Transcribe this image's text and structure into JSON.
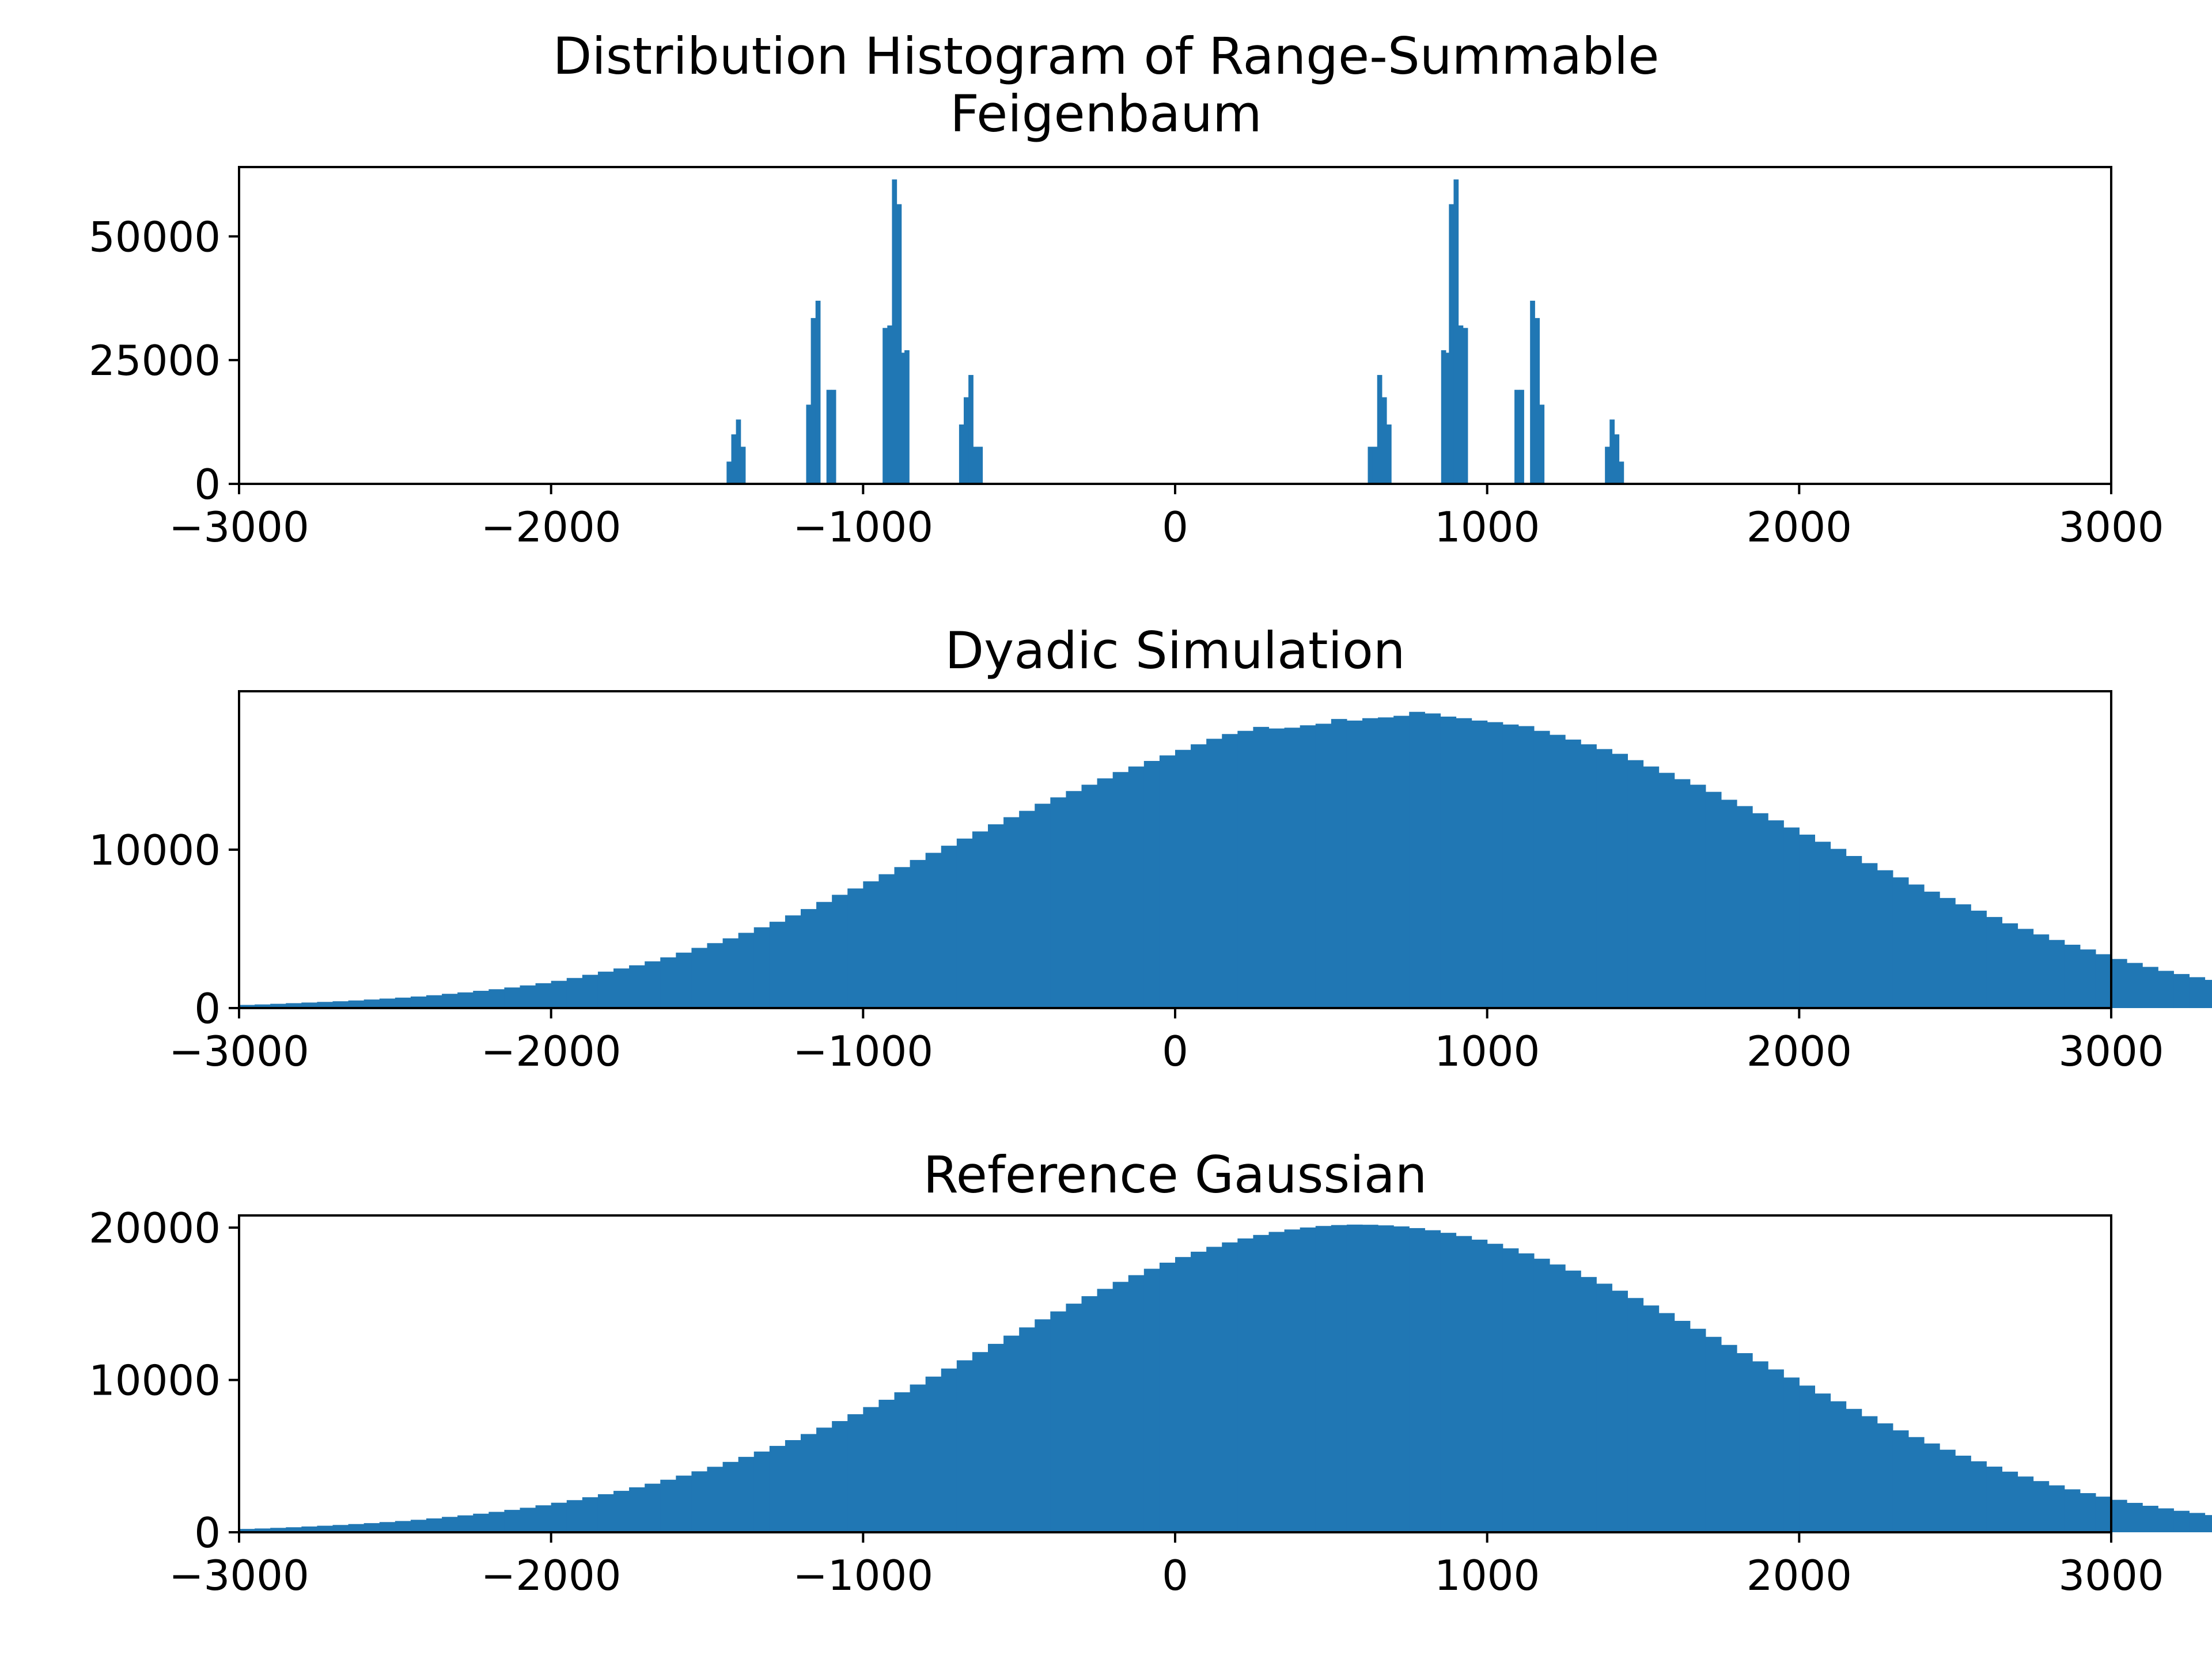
{
  "figure": {
    "title_line1": "Distribution Histogram of Range-Summable",
    "title_line2": "Feigenbaum"
  },
  "colors": {
    "bar": "#2077b4",
    "axis": "#000000",
    "background": "#ffffff"
  },
  "chart_data": [
    {
      "type": "bar",
      "title": "",
      "xlabel": "",
      "ylabel": "",
      "xlim": [
        -3000,
        3000
      ],
      "ylim": [
        0,
        64000
      ],
      "xticks": [
        "−3000",
        "−2000",
        "−1000",
        "0",
        "1000",
        "2000",
        "3000"
      ],
      "yticks": [
        "0",
        "25000",
        "50000"
      ],
      "grid": false,
      "bins": {
        "x": [
          -1430,
          -1415,
          -1400,
          -1385,
          -1175,
          -1160,
          -1145,
          -1110,
          -1095,
          -930,
          -915,
          -900,
          -885,
          -870,
          -860,
          -685,
          -670,
          -655,
          -640,
          -625,
          625,
          640,
          655,
          670,
          685,
          860,
          870,
          885,
          900,
          915,
          930,
          1095,
          1110,
          1145,
          1160,
          1175,
          1385,
          1400,
          1415,
          1430
        ],
        "width": 15,
        "values": [
          4500,
          10000,
          13000,
          7500,
          16000,
          33500,
          37000,
          19000,
          19000,
          31500,
          32000,
          61500,
          56500,
          26500,
          27000,
          12000,
          17500,
          22000,
          7500,
          7500,
          7500,
          7500,
          22000,
          17500,
          12000,
          27000,
          26500,
          56500,
          61500,
          32000,
          31500,
          19000,
          19000,
          37000,
          33500,
          16000,
          7500,
          13000,
          10000,
          4500
        ]
      }
    },
    {
      "type": "bar",
      "title": "Dyadic Simulation",
      "xlabel": "",
      "ylabel": "",
      "xlim": [
        -3000,
        3000
      ],
      "ylim": [
        0,
        20000
      ],
      "xticks": [
        "−3000",
        "−2000",
        "−1000",
        "0",
        "1000",
        "2000",
        "3000"
      ],
      "yticks": [
        "0",
        "10000"
      ],
      "grid": false,
      "bins": {
        "start": -3000,
        "width": 50,
        "values": [
          200,
          230,
          270,
          310,
          350,
          390,
          430,
          480,
          540,
          600,
          660,
          730,
          810,
          900,
          990,
          1090,
          1190,
          1300,
          1430,
          1570,
          1720,
          1900,
          2100,
          2300,
          2500,
          2700,
          2950,
          3200,
          3500,
          3800,
          4100,
          4400,
          4750,
          5100,
          5450,
          5850,
          6250,
          6700,
          7150,
          7550,
          8000,
          8450,
          8900,
          9350,
          9800,
          10250,
          10700,
          11150,
          11600,
          12050,
          12450,
          12900,
          13300,
          13700,
          14100,
          14500,
          14900,
          15250,
          15600,
          15950,
          16300,
          16650,
          17000,
          17300,
          17500,
          17750,
          17650,
          17700,
          17850,
          17950,
          18250,
          18150,
          18300,
          18350,
          18450,
          18700,
          18600,
          18400,
          18300,
          18150,
          18050,
          17900,
          17800,
          17500,
          17250,
          16950,
          16650,
          16350,
          16050,
          15650,
          15250,
          14850,
          14450,
          14100,
          13650,
          13150,
          12750,
          12300,
          11850,
          11400,
          10950,
          10500,
          10050,
          9600,
          9150,
          8700,
          8250,
          7800,
          7350,
          6950,
          6550,
          6150,
          5750,
          5350,
          5000,
          4650,
          4300,
          4000,
          3700,
          3400,
          3100,
          2850,
          2600,
          2350,
          2150,
          1950,
          1780,
          1620,
          1470,
          1330,
          1200,
          1080,
          970,
          870,
          780,
          700,
          620,
          550,
          490,
          430,
          380,
          330,
          290,
          250,
          210,
          180,
          150,
          120
        ]
      }
    },
    {
      "type": "bar",
      "title": "Reference Gaussian",
      "xlabel": "",
      "ylabel": "",
      "xlim": [
        -3000,
        3000
      ],
      "ylim": [
        0,
        20800
      ],
      "xticks": [
        "−3000",
        "−2000",
        "−1000",
        "0",
        "1000",
        "2000",
        "3000"
      ],
      "yticks": [
        "0",
        "10000",
        "20000"
      ],
      "grid": false,
      "bins": {
        "start": -3000,
        "width": 50,
        "values": [
          220,
          250,
          290,
          330,
          380,
          430,
          480,
          540,
          600,
          670,
          740,
          820,
          910,
          1010,
          1110,
          1220,
          1340,
          1470,
          1610,
          1770,
          1940,
          2110,
          2300,
          2500,
          2720,
          2950,
          3190,
          3450,
          3720,
          4000,
          4300,
          4620,
          4950,
          5300,
          5670,
          6050,
          6450,
          6870,
          7300,
          7750,
          8220,
          8700,
          9190,
          9700,
          10220,
          10750,
          11290,
          11830,
          12370,
          12910,
          13450,
          13980,
          14500,
          15010,
          15500,
          15980,
          16440,
          16880,
          17300,
          17700,
          18070,
          18420,
          18740,
          19030,
          19290,
          19520,
          19720,
          19880,
          20010,
          20110,
          20170,
          20200,
          20190,
          20150,
          20080,
          19970,
          19830,
          19660,
          19450,
          19210,
          18940,
          18640,
          18310,
          17960,
          17580,
          17180,
          16760,
          16320,
          15860,
          15380,
          14890,
          14390,
          13880,
          13360,
          12830,
          12300,
          11760,
          11220,
          10690,
          10160,
          9630,
          9110,
          8600,
          8100,
          7620,
          7150,
          6690,
          6250,
          5830,
          5420,
          5030,
          4660,
          4310,
          3980,
          3660,
          3360,
          3080,
          2820,
          2570,
          2340,
          2130,
          1930,
          1740,
          1570,
          1410,
          1270,
          1130,
          1010,
          900,
          800,
          710,
          630,
          550,
          490,
          430,
          380,
          330,
          290,
          250,
          220,
          190,
          160,
          140,
          120,
          100,
          90
        ]
      }
    }
  ]
}
